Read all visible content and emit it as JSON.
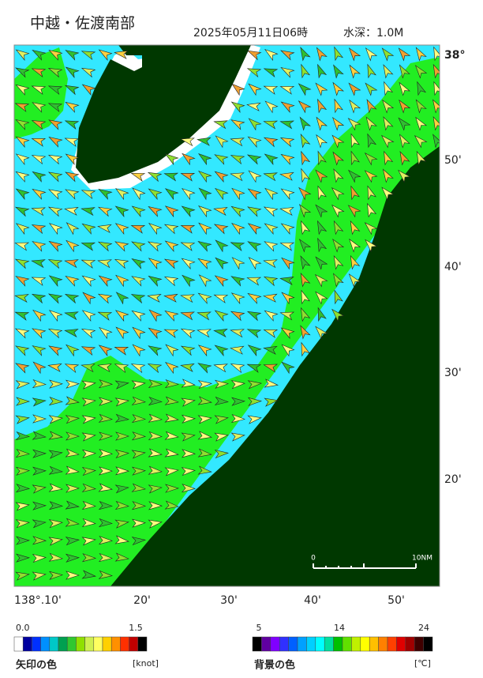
{
  "header": {
    "title": "中越・佐渡南部",
    "datetime": "2025年05月11日06時",
    "depth": "水深：1.0M"
  },
  "map": {
    "lat_labels": [
      "38°",
      "50'",
      "40'",
      "30'",
      "20'"
    ],
    "lon_labels": [
      "138°.10'",
      "20'",
      "30'",
      "40'",
      "50'"
    ],
    "scale_bar": {
      "start": "0",
      "end": "10NM"
    }
  },
  "legend": {
    "arrow": {
      "min": "0.0",
      "max": "1.5",
      "title": "矢印の色",
      "unit": "[knot]"
    },
    "background": {
      "min": "5",
      "mid": "14",
      "max": "24",
      "title": "背景の色",
      "unit": "[℃]"
    }
  }
}
